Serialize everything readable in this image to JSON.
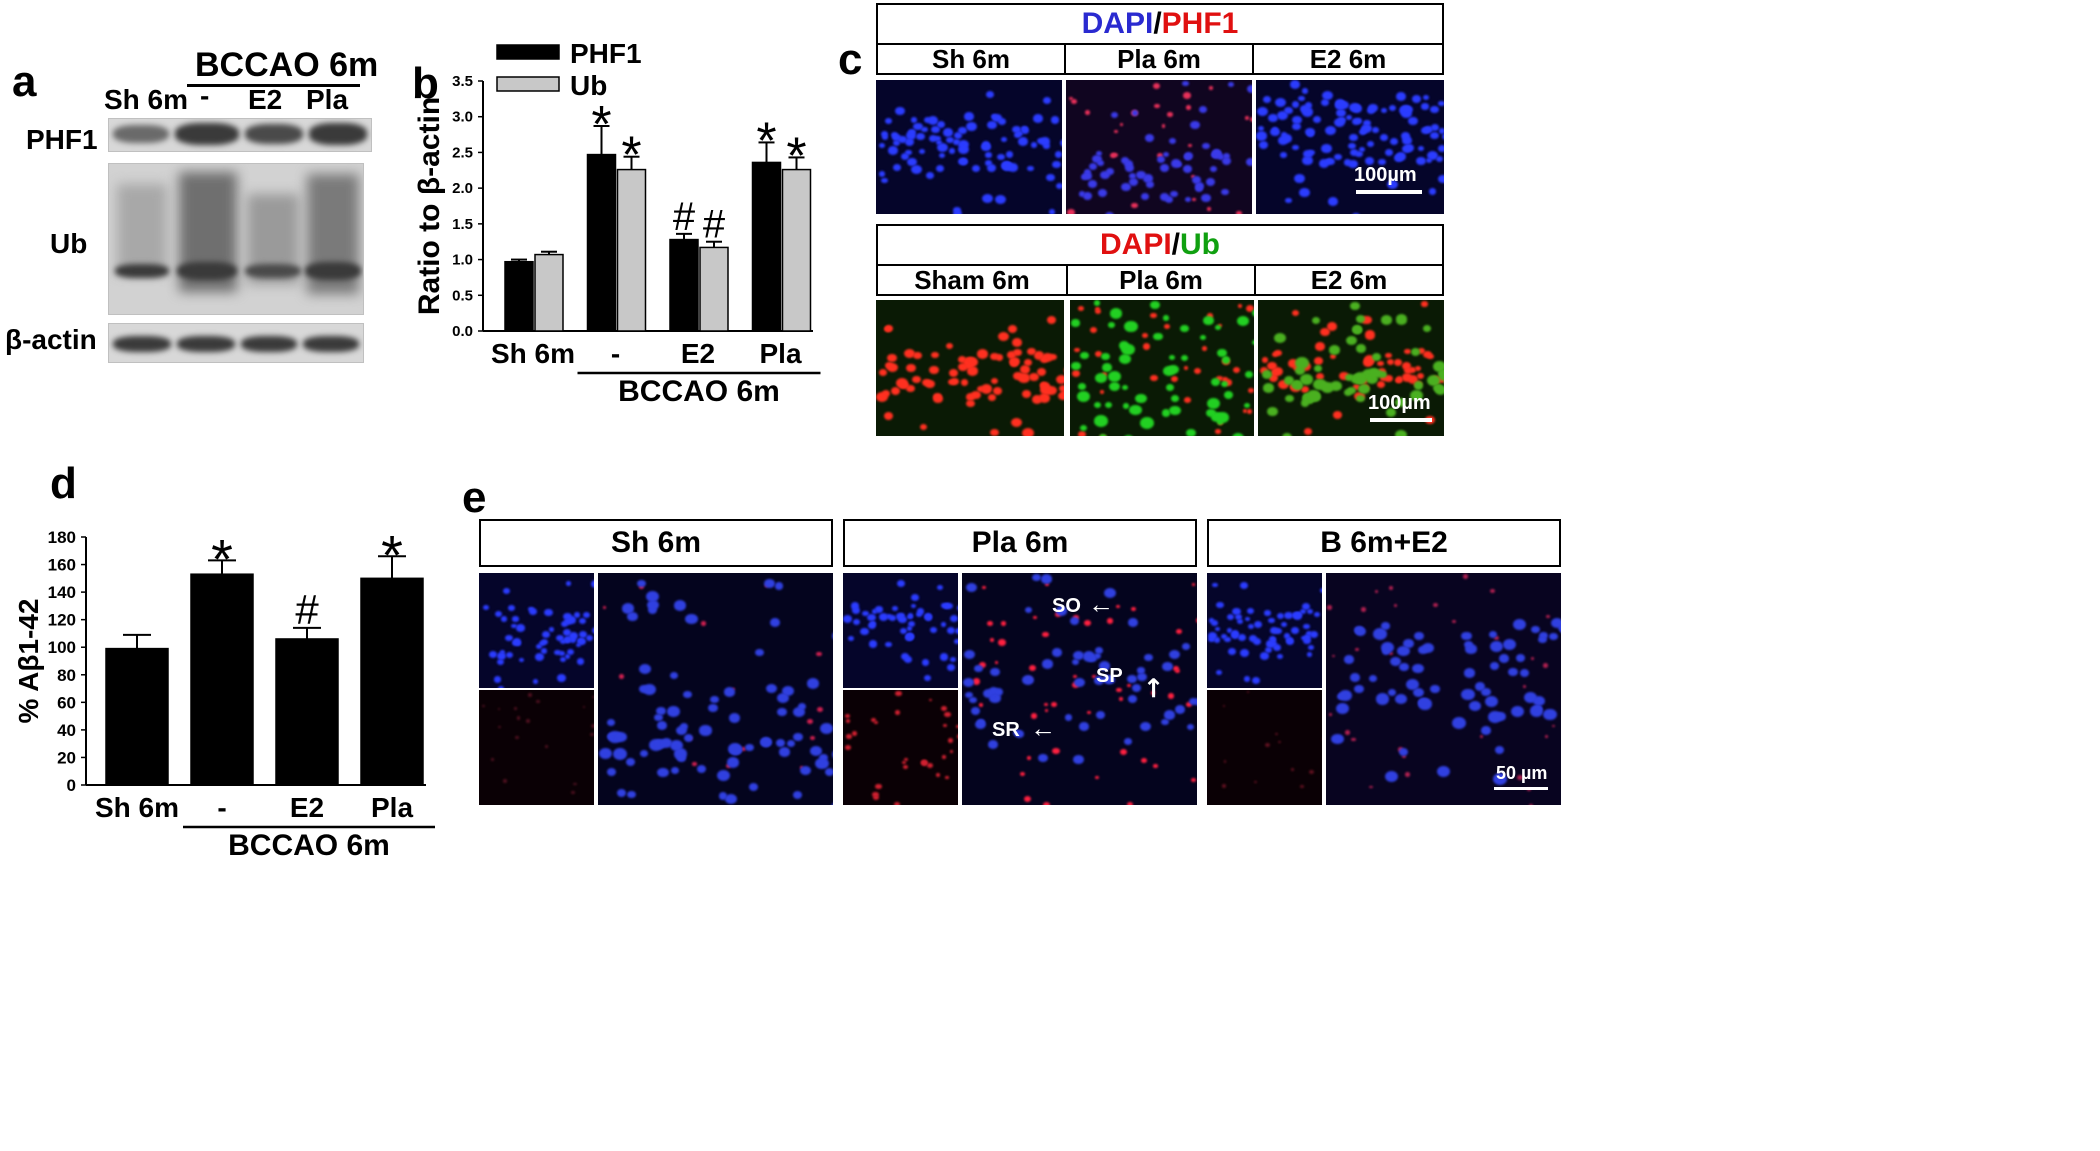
{
  "panel_a": {
    "label": "a",
    "group_label": "BCCAO 6m",
    "lanes": [
      "Sh 6m",
      "-",
      "E2",
      "Pla"
    ],
    "rows": [
      "PHF1",
      "Ub",
      "β-actin"
    ]
  },
  "panel_b": {
    "label": "b",
    "chart_data": {
      "type": "bar",
      "categories": [
        "Sh 6m",
        "-",
        "E2",
        "Pla"
      ],
      "group_label": "BCCAO 6m",
      "ylabel": "Ratio to β-actin",
      "ylim": [
        0,
        3.5
      ],
      "yticks": [
        "0.0",
        "0.5",
        "1.0",
        "1.5",
        "2.0",
        "2.5",
        "3.0",
        "3.5"
      ],
      "series": [
        {
          "name": "PHF1",
          "color": "#000000",
          "values": [
            0.97,
            2.47,
            1.28,
            2.36
          ],
          "errors": [
            0.03,
            0.4,
            0.08,
            0.28
          ]
        },
        {
          "name": "Ub",
          "color": "#c8c8c8",
          "values": [
            1.07,
            2.26,
            1.17,
            2.26
          ],
          "errors": [
            0.04,
            0.18,
            0.08,
            0.17
          ]
        }
      ],
      "annotations": [
        {
          "category": "-",
          "series": "PHF1",
          "mark": "*"
        },
        {
          "category": "-",
          "series": "Ub",
          "mark": "*"
        },
        {
          "category": "E2",
          "series": "PHF1",
          "mark": "#"
        },
        {
          "category": "E2",
          "series": "Ub",
          "mark": "#"
        },
        {
          "category": "Pla",
          "series": "PHF1",
          "mark": "*"
        },
        {
          "category": "Pla",
          "series": "Ub",
          "mark": "*"
        }
      ],
      "legend": "top-left"
    }
  },
  "panel_c": {
    "label": "c",
    "top": {
      "title_dapi": "DAPI",
      "title_sep": "/",
      "title_marker": "PHF1",
      "columns": [
        "Sh 6m",
        "Pla 6m",
        "E2 6m"
      ],
      "scale": "100µm"
    },
    "bottom": {
      "title_dapi": "DAPI",
      "title_sep": "/",
      "title_marker": "Ub",
      "columns": [
        "Sham 6m",
        "Pla 6m",
        "E2 6m"
      ],
      "scale": "100µm"
    }
  },
  "panel_d": {
    "label": "d",
    "chart_data": {
      "type": "bar",
      "categories": [
        "Sh 6m",
        "-",
        "E2",
        "Pla"
      ],
      "group_label": "BCCAO 6m",
      "ylabel": "% Aβ1-42",
      "ylim": [
        0,
        180
      ],
      "yticks": [
        "0",
        "20",
        "40",
        "60",
        "80",
        "100",
        "120",
        "140",
        "160",
        "180"
      ],
      "series": [
        {
          "color": "#000000",
          "values": [
            99,
            153,
            106,
            150
          ],
          "errors": [
            10,
            10,
            8,
            16
          ]
        }
      ],
      "annotations": [
        {
          "category": "-",
          "mark": "*"
        },
        {
          "category": "E2",
          "mark": "#"
        },
        {
          "category": "Pla",
          "mark": "*"
        }
      ]
    }
  },
  "panel_e": {
    "label": "e",
    "columns": [
      "Sh 6m",
      "Pla 6m",
      "B 6m+E2"
    ],
    "layer_labels": [
      "SO",
      "SP",
      "SR"
    ],
    "scale": "50 µm"
  }
}
